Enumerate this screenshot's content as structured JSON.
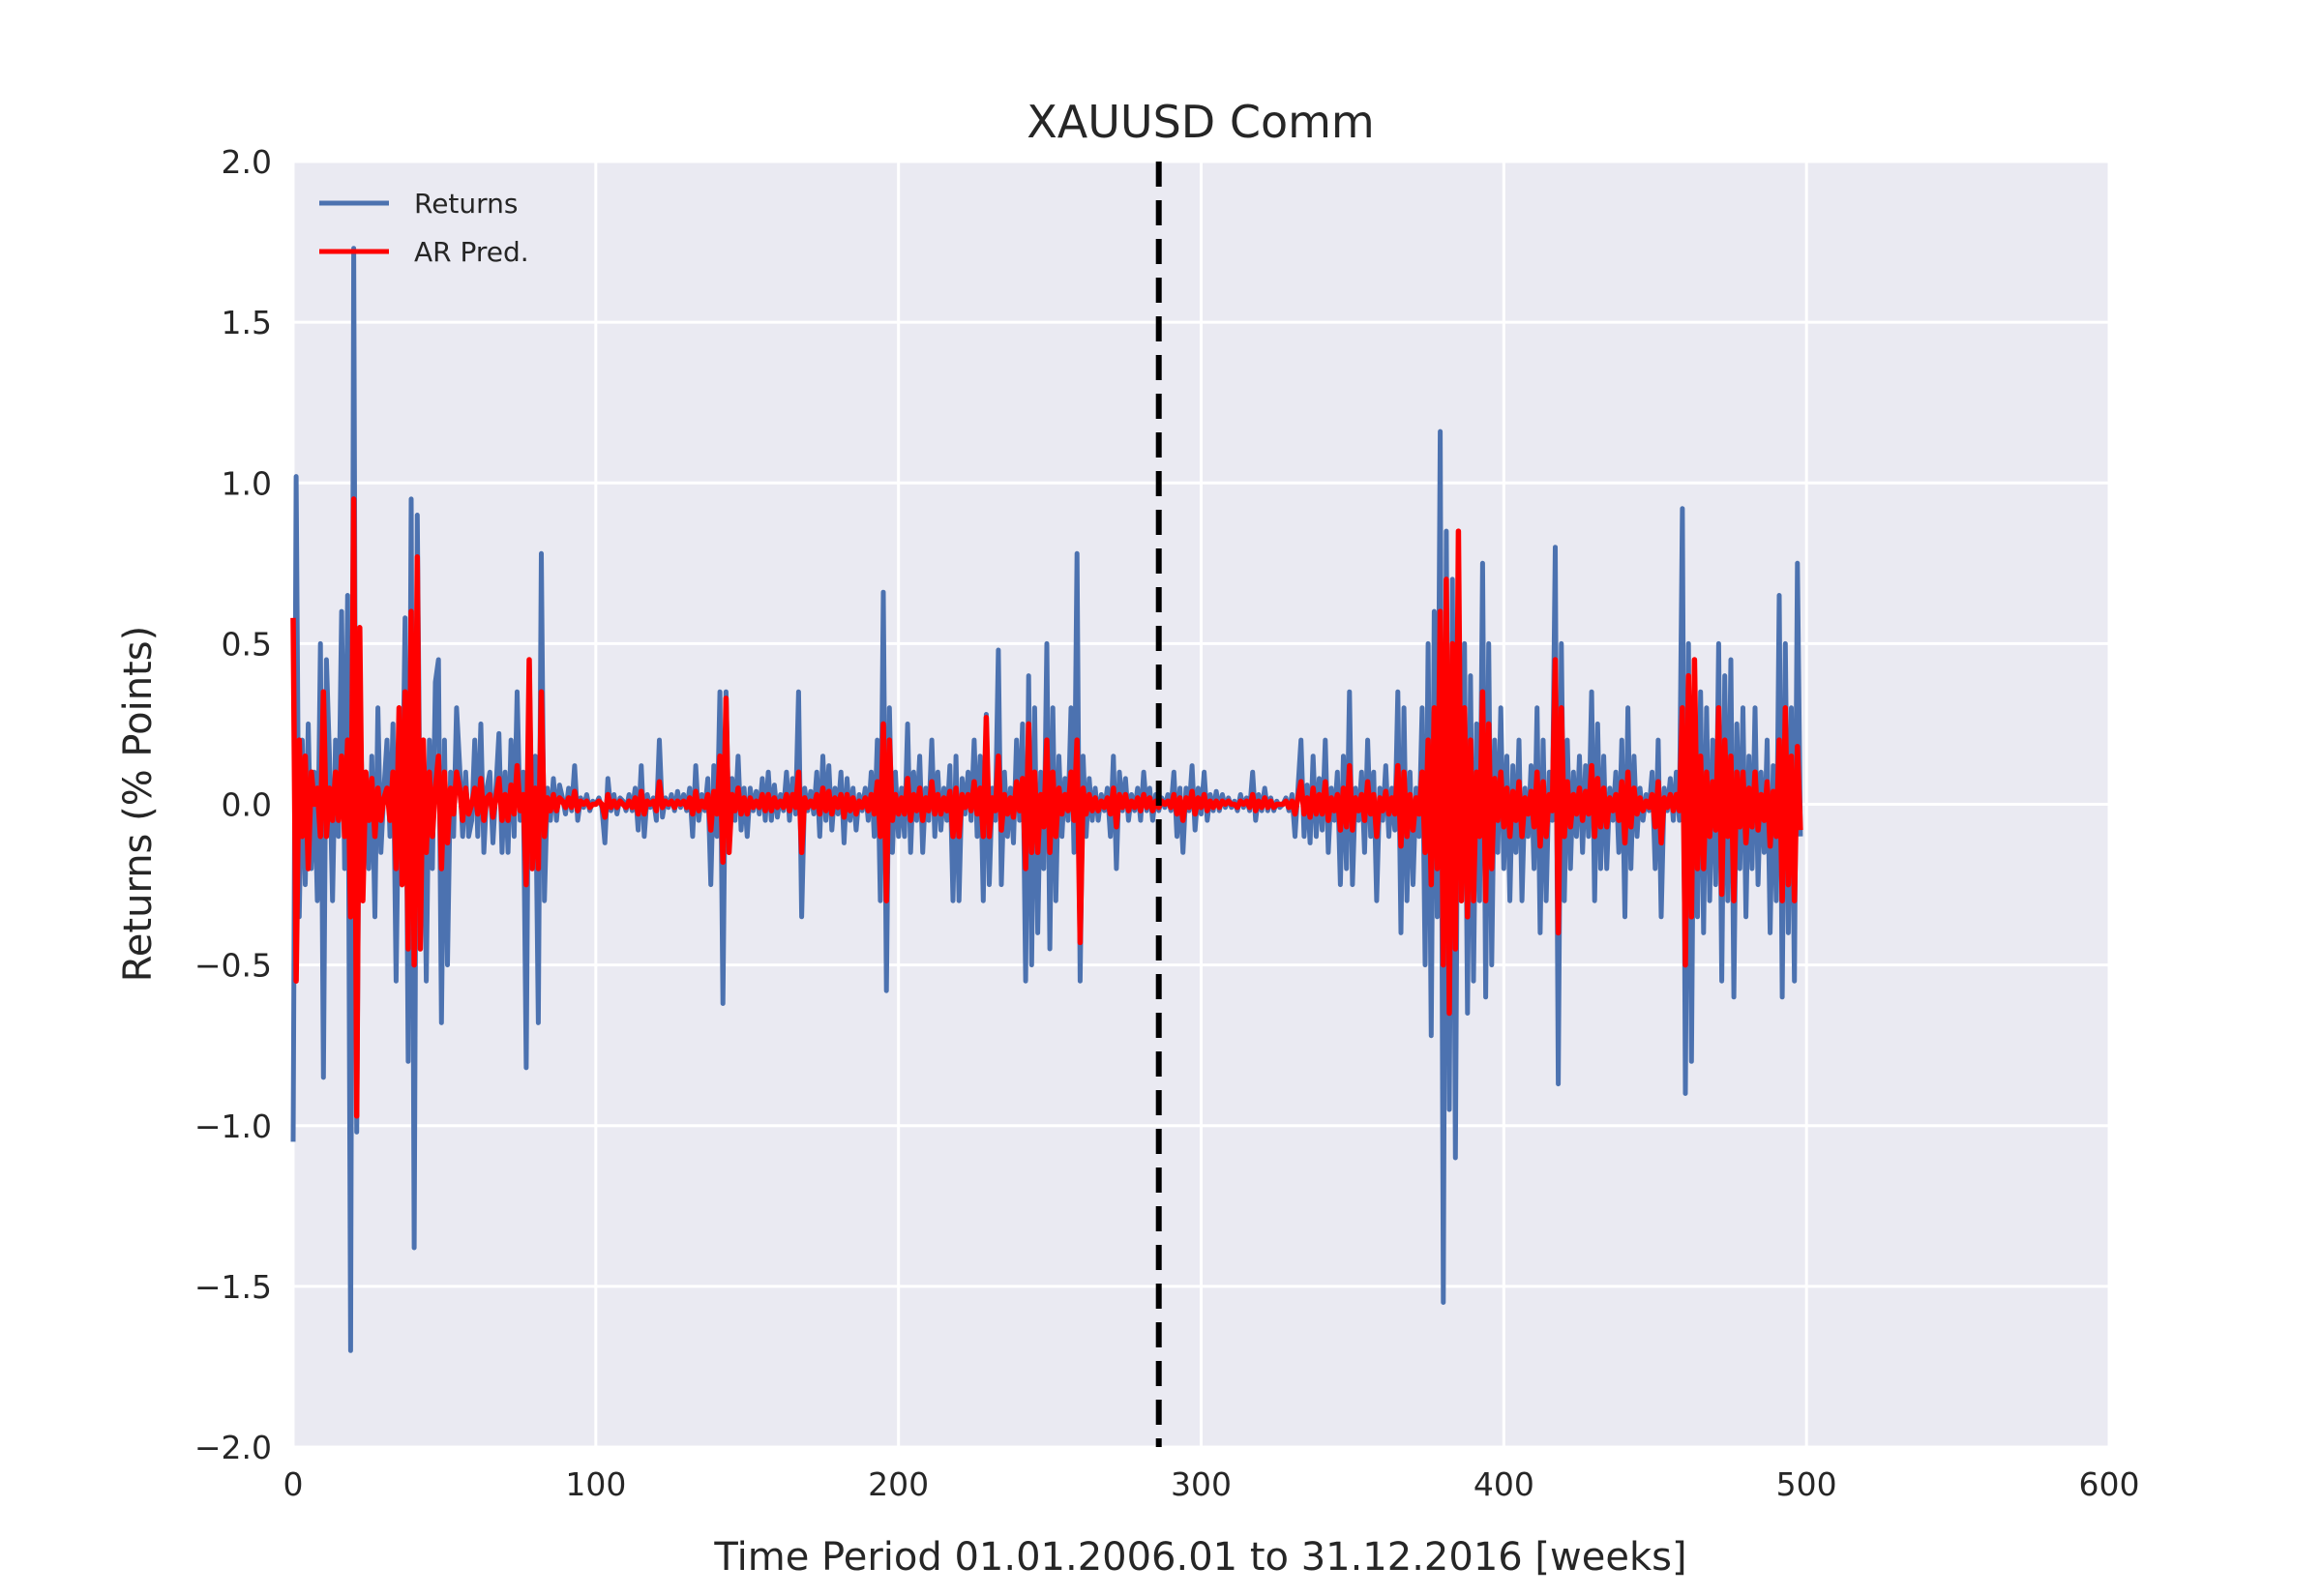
{
  "colors": {
    "background": "#eaeaf2",
    "grid": "#ffffff",
    "returns": "#4c72b0",
    "ar_pred": "#ff0000",
    "split_line": "#000000"
  },
  "chart_data": {
    "type": "line",
    "title": "XAUUSD Comm",
    "xlabel": "Time Period 01.01.2006.01 to 31.12.2016 [weeks]",
    "ylabel": "Returns (% Points)",
    "xlim": [
      0,
      600
    ],
    "ylim": [
      -2.0,
      2.0
    ],
    "xticks": [
      0,
      100,
      200,
      300,
      400,
      500,
      600
    ],
    "xtick_labels": [
      "0",
      "100",
      "200",
      "300",
      "400",
      "500",
      "600"
    ],
    "yticks": [
      2.0,
      1.5,
      1.0,
      0.5,
      0.0,
      -0.5,
      -1.0,
      -1.5,
      -2.0
    ],
    "ytick_labels": [
      "2.0",
      "1.5",
      "1.0",
      "0.5",
      "0.0",
      "−0.5",
      "−1.0",
      "−1.5",
      "−2.0"
    ],
    "grid": true,
    "legend_position": "top-left",
    "split_marker_x": 286,
    "series": [
      {
        "name": "Returns",
        "values": [
          -1.05,
          1.02,
          -0.35,
          0.2,
          -0.25,
          0.25,
          -0.2,
          0.1,
          -0.3,
          0.5,
          -0.85,
          0.45,
          0.15,
          -0.3,
          0.2,
          -0.1,
          0.6,
          -0.2,
          0.65,
          -1.7,
          1.73,
          -1.02,
          0.35,
          -0.05,
          0.1,
          -0.2,
          0.15,
          -0.35,
          0.3,
          -0.15,
          0.05,
          0.2,
          -0.1,
          0.25,
          -0.55,
          0.15,
          -0.1,
          0.58,
          -0.8,
          0.95,
          -1.38,
          0.9,
          -0.15,
          0.2,
          -0.55,
          0.2,
          -0.2,
          0.38,
          0.45,
          -0.68,
          0.2,
          -0.5,
          0.1,
          -0.1,
          0.3,
          0.12,
          -0.1,
          0.1,
          -0.1,
          -0.05,
          0.2,
          -0.1,
          0.25,
          -0.15,
          0.05,
          0.1,
          -0.12,
          0.05,
          0.22,
          -0.15,
          0.1,
          -0.15,
          0.2,
          -0.1,
          0.35,
          -0.05,
          0.1,
          -0.82,
          0.45,
          -0.2,
          0.15,
          -0.68,
          0.78,
          -0.3,
          0.05,
          -0.05,
          0.08,
          -0.05,
          0.06,
          0.02,
          -0.03,
          0.05,
          -0.02,
          0.12,
          -0.05,
          0.02,
          -0.01,
          0.03,
          -0.02,
          0.01,
          0.0,
          0.02,
          -0.01,
          -0.12,
          0.08,
          -0.02,
          0.03,
          -0.03,
          0.02,
          0.01,
          -0.02,
          0.03,
          -0.02,
          0.05,
          -0.08,
          0.12,
          -0.1,
          0.03,
          -0.01,
          0.02,
          -0.05,
          0.2,
          -0.04,
          0.02,
          -0.01,
          0.03,
          -0.02,
          0.04,
          -0.01,
          0.03,
          -0.02,
          0.05,
          -0.1,
          0.12,
          -0.05,
          0.03,
          -0.02,
          0.08,
          -0.25,
          0.12,
          -0.1,
          0.35,
          -0.62,
          0.35,
          -0.1,
          0.08,
          -0.05,
          0.15,
          -0.08,
          0.05,
          -0.1,
          0.05,
          -0.02,
          0.04,
          -0.03,
          0.08,
          -0.05,
          0.1,
          -0.05,
          0.06,
          -0.04,
          0.03,
          -0.02,
          0.1,
          -0.05,
          0.08,
          -0.03,
          0.35,
          -0.35,
          0.05,
          -0.02,
          0.04,
          -0.03,
          0.1,
          -0.1,
          0.15,
          -0.05,
          0.12,
          -0.08,
          0.05,
          -0.03,
          0.1,
          -0.12,
          0.08,
          -0.05,
          0.05,
          -0.08,
          0.03,
          -0.02,
          0.05,
          -0.05,
          0.1,
          -0.1,
          0.2,
          -0.3,
          0.66,
          -0.58,
          0.3,
          -0.15,
          0.1,
          -0.1,
          0.05,
          -0.1,
          0.25,
          -0.15,
          0.1,
          -0.05,
          0.15,
          -0.15,
          0.05,
          -0.05,
          0.2,
          -0.1,
          0.1,
          -0.08,
          0.05,
          -0.05,
          0.12,
          -0.3,
          0.15,
          -0.3,
          0.08,
          -0.03,
          0.1,
          -0.05,
          0.2,
          -0.1,
          0.15,
          -0.3,
          0.28,
          -0.25,
          0.05,
          -0.05,
          0.48,
          -0.25,
          0.1,
          -0.1,
          0.05,
          -0.12,
          0.2,
          -0.05,
          0.25,
          -0.55,
          0.4,
          -0.5,
          0.3,
          -0.4,
          0.1,
          -0.2,
          0.5,
          -0.45,
          0.3,
          -0.3,
          0.15,
          -0.1,
          0.08,
          -0.05,
          0.3,
          -0.15,
          0.78,
          -0.55,
          0.15,
          -0.1,
          0.08,
          -0.05,
          0.05,
          -0.05,
          0.03,
          -0.02,
          0.05,
          -0.1,
          0.15,
          -0.2,
          0.1,
          -0.02,
          0.08,
          -0.05,
          0.03,
          -0.02,
          0.05,
          -0.05,
          0.1,
          -0.02,
          0.05,
          -0.05,
          0.03,
          -0.02,
          0.02,
          -0.01,
          0.03,
          -0.02,
          0.1,
          -0.1,
          0.05,
          -0.15,
          0.05,
          -0.02,
          0.12,
          -0.08,
          0.05,
          -0.03,
          0.1,
          -0.05,
          0.03,
          -0.02,
          0.04,
          -0.02,
          0.03,
          -0.01,
          0.02,
          -0.01,
          0.01,
          -0.02,
          0.03,
          -0.01,
          0.02,
          -0.02,
          0.1,
          -0.05,
          0.03,
          -0.02,
          0.05,
          -0.02,
          0.02,
          -0.02,
          0.01,
          -0.01,
          0.0,
          0.02,
          -0.02,
          0.03,
          -0.1,
          0.05,
          0.2,
          -0.1,
          0.06,
          -0.12,
          0.15,
          -0.1,
          0.08,
          -0.08,
          0.2,
          -0.15,
          0.05,
          -0.05,
          0.1,
          -0.25,
          0.15,
          -0.2,
          0.35,
          -0.25,
          0.05,
          -0.05,
          0.1,
          -0.15,
          0.2,
          -0.1,
          0.1,
          -0.3,
          0.05,
          -0.05,
          0.12,
          -0.1,
          0.05,
          -0.08,
          0.35,
          -0.4,
          0.3,
          -0.3,
          0.1,
          -0.25,
          0.05,
          -0.1,
          0.3,
          -0.5,
          0.5,
          -0.72,
          0.6,
          -0.35,
          1.16,
          -1.55,
          0.85,
          -0.95,
          0.7,
          -1.1,
          0.55,
          -0.3,
          0.5,
          -0.65,
          0.4,
          -0.55,
          0.25,
          -0.3,
          0.75,
          -0.6,
          0.5,
          -0.5,
          0.2,
          -0.15,
          0.3,
          -0.2,
          0.15,
          -0.3,
          0.12,
          -0.15,
          0.2,
          -0.3,
          0.05,
          -0.1,
          0.12,
          -0.2,
          0.3,
          -0.4,
          0.2,
          -0.3,
          0.1,
          -0.05,
          0.8,
          -0.87,
          0.5,
          -0.3,
          0.2,
          -0.2,
          0.1,
          -0.1,
          0.15,
          -0.15,
          0.12,
          -0.1,
          0.35,
          -0.3,
          0.25,
          -0.2,
          0.15,
          -0.2,
          0.05,
          -0.05,
          0.1,
          -0.15,
          0.2,
          -0.35,
          0.3,
          -0.2,
          0.15,
          -0.1,
          0.05,
          -0.05,
          0.03,
          -0.02,
          0.1,
          -0.2,
          0.2,
          -0.35,
          0.05,
          -0.02,
          0.08,
          -0.05,
          0.1,
          -0.05,
          0.92,
          -0.9,
          0.5,
          -0.8,
          0.45,
          -0.35,
          0.35,
          -0.4,
          0.3,
          -0.3,
          0.2,
          -0.25,
          0.5,
          -0.55,
          0.4,
          -0.3,
          0.45,
          -0.6,
          0.25,
          -0.2,
          0.3,
          -0.35,
          0.15,
          -0.2,
          0.3,
          -0.25,
          0.1,
          -0.15,
          0.2,
          -0.4,
          0.12,
          -0.3,
          0.65,
          -0.6,
          0.5,
          -0.4,
          0.3,
          -0.55,
          0.75,
          -0.1
        ]
      },
      {
        "name": "AR Pred.",
        "values": [
          0.58,
          -0.55,
          0.2,
          -0.1,
          0.15,
          -0.2,
          0.1,
          0.0,
          0.05,
          -0.1,
          0.35,
          -0.1,
          0.05,
          -0.05,
          0.1,
          -0.05,
          0.15,
          -0.1,
          0.2,
          -0.35,
          0.95,
          -0.97,
          0.55,
          -0.3,
          0.1,
          -0.05,
          0.08,
          -0.1,
          0.05,
          -0.05,
          0.02,
          0.05,
          -0.05,
          0.1,
          -0.2,
          0.3,
          -0.25,
          0.35,
          -0.45,
          0.6,
          -0.5,
          0.77,
          -0.45,
          0.2,
          -0.15,
          0.1,
          -0.1,
          0.05,
          0.15,
          -0.2,
          0.1,
          -0.12,
          0.05,
          -0.03,
          0.1,
          0.05,
          -0.05,
          0.05,
          -0.03,
          0.0,
          0.05,
          -0.03,
          0.08,
          -0.05,
          0.02,
          0.03,
          -0.04,
          0.02,
          0.08,
          -0.05,
          0.03,
          -0.05,
          0.06,
          -0.03,
          0.12,
          -0.02,
          0.03,
          -0.25,
          0.45,
          -0.2,
          0.05,
          -0.2,
          0.35,
          -0.1,
          0.02,
          -0.02,
          0.03,
          -0.02,
          0.02,
          0.01,
          -0.01,
          0.02,
          -0.01,
          0.04,
          -0.02,
          0.01,
          0.0,
          0.01,
          -0.01,
          0.0,
          0.0,
          0.01,
          0.0,
          -0.04,
          0.03,
          -0.01,
          0.01,
          -0.01,
          0.01,
          0.0,
          -0.01,
          0.01,
          -0.01,
          0.02,
          -0.03,
          0.04,
          -0.03,
          0.01,
          0.0,
          0.01,
          -0.02,
          0.07,
          -0.01,
          0.01,
          0.0,
          0.01,
          -0.01,
          0.01,
          0.0,
          0.01,
          -0.01,
          0.02,
          -0.03,
          0.04,
          -0.02,
          0.01,
          -0.01,
          0.03,
          -0.08,
          0.04,
          -0.03,
          0.15,
          -0.18,
          0.33,
          -0.15,
          0.03,
          -0.02,
          0.05,
          -0.03,
          0.02,
          -0.03,
          0.02,
          -0.01,
          0.01,
          -0.01,
          0.03,
          -0.02,
          0.03,
          -0.02,
          0.02,
          -0.01,
          0.01,
          -0.01,
          0.03,
          -0.02,
          0.03,
          -0.01,
          0.1,
          -0.15,
          0.02,
          -0.01,
          0.01,
          -0.01,
          0.03,
          -0.03,
          0.05,
          -0.02,
          0.04,
          -0.03,
          0.02,
          -0.01,
          0.03,
          -0.04,
          0.03,
          -0.02,
          0.02,
          -0.03,
          0.01,
          -0.01,
          0.02,
          -0.02,
          0.03,
          -0.03,
          0.07,
          -0.1,
          0.25,
          -0.3,
          0.2,
          -0.05,
          0.03,
          -0.03,
          0.02,
          -0.03,
          0.08,
          -0.05,
          0.03,
          -0.02,
          0.05,
          -0.05,
          0.02,
          -0.02,
          0.07,
          -0.03,
          0.03,
          -0.03,
          0.02,
          -0.02,
          0.04,
          -0.1,
          0.05,
          -0.1,
          0.03,
          -0.01,
          0.03,
          -0.02,
          0.07,
          -0.03,
          0.05,
          -0.1,
          0.27,
          -0.1,
          0.02,
          -0.02,
          0.15,
          -0.08,
          0.03,
          -0.03,
          0.02,
          -0.04,
          0.07,
          -0.02,
          0.08,
          -0.2,
          0.25,
          -0.15,
          0.1,
          -0.15,
          0.03,
          -0.07,
          0.2,
          -0.15,
          0.1,
          -0.1,
          0.05,
          -0.03,
          0.03,
          -0.02,
          0.1,
          -0.05,
          0.2,
          -0.43,
          0.05,
          -0.03,
          0.03,
          -0.02,
          0.02,
          -0.02,
          0.01,
          -0.01,
          0.02,
          -0.03,
          0.05,
          -0.07,
          0.03,
          -0.01,
          0.03,
          -0.02,
          0.01,
          -0.01,
          0.02,
          -0.02,
          0.03,
          -0.01,
          0.02,
          -0.02,
          0.01,
          -0.01,
          0.01,
          0.0,
          0.01,
          -0.01,
          0.03,
          -0.03,
          0.02,
          -0.05,
          0.02,
          -0.01,
          0.04,
          -0.03,
          0.02,
          -0.01,
          0.03,
          -0.02,
          0.01,
          -0.01,
          0.01,
          -0.01,
          0.01,
          0.0,
          0.01,
          0.0,
          0.0,
          -0.01,
          0.01,
          0.0,
          0.01,
          -0.01,
          0.03,
          -0.02,
          0.01,
          -0.01,
          0.02,
          -0.01,
          0.01,
          -0.01,
          0.0,
          0.0,
          0.0,
          0.01,
          -0.01,
          0.01,
          -0.03,
          0.02,
          0.07,
          -0.03,
          0.02,
          -0.04,
          0.05,
          -0.03,
          0.03,
          -0.03,
          0.07,
          -0.05,
          0.02,
          -0.02,
          0.03,
          -0.08,
          0.05,
          -0.07,
          0.12,
          -0.08,
          0.02,
          -0.02,
          0.03,
          -0.05,
          0.07,
          -0.03,
          0.03,
          -0.1,
          0.02,
          -0.02,
          0.04,
          -0.03,
          0.02,
          -0.03,
          0.12,
          -0.13,
          0.1,
          -0.1,
          0.03,
          -0.08,
          0.02,
          -0.03,
          0.1,
          -0.15,
          0.2,
          -0.25,
          0.3,
          -0.2,
          0.6,
          -0.5,
          0.7,
          -0.65,
          0.5,
          -0.45,
          0.85,
          -0.3,
          0.3,
          -0.35,
          0.2,
          -0.3,
          0.1,
          -0.1,
          0.35,
          -0.3,
          0.25,
          -0.2,
          0.08,
          -0.05,
          0.1,
          -0.07,
          0.05,
          -0.1,
          0.04,
          -0.05,
          0.07,
          -0.1,
          0.02,
          -0.03,
          0.04,
          -0.07,
          0.1,
          -0.13,
          0.07,
          -0.1,
          0.03,
          -0.02,
          0.45,
          -0.4,
          0.3,
          -0.1,
          0.07,
          -0.07,
          0.03,
          -0.03,
          0.05,
          -0.05,
          0.04,
          -0.03,
          0.12,
          -0.1,
          0.08,
          -0.07,
          0.05,
          -0.07,
          0.02,
          -0.02,
          0.03,
          -0.05,
          0.07,
          -0.12,
          0.1,
          -0.07,
          0.05,
          -0.03,
          0.02,
          -0.02,
          0.01,
          -0.01,
          0.03,
          -0.07,
          0.07,
          -0.12,
          0.02,
          -0.01,
          0.03,
          -0.02,
          0.03,
          -0.02,
          0.3,
          -0.5,
          0.4,
          -0.35,
          0.45,
          -0.2,
          0.15,
          -0.2,
          0.1,
          -0.1,
          0.07,
          -0.08,
          0.3,
          -0.28,
          0.2,
          -0.1,
          0.15,
          -0.3,
          0.1,
          -0.07,
          0.1,
          -0.12,
          0.05,
          -0.07,
          0.1,
          -0.08,
          0.03,
          -0.05,
          0.07,
          -0.13,
          0.04,
          -0.1,
          0.2,
          -0.3,
          0.3,
          -0.25,
          0.15,
          -0.3,
          0.18,
          -0.08
        ]
      }
    ],
    "legend": [
      "Returns",
      "AR Pred."
    ]
  }
}
